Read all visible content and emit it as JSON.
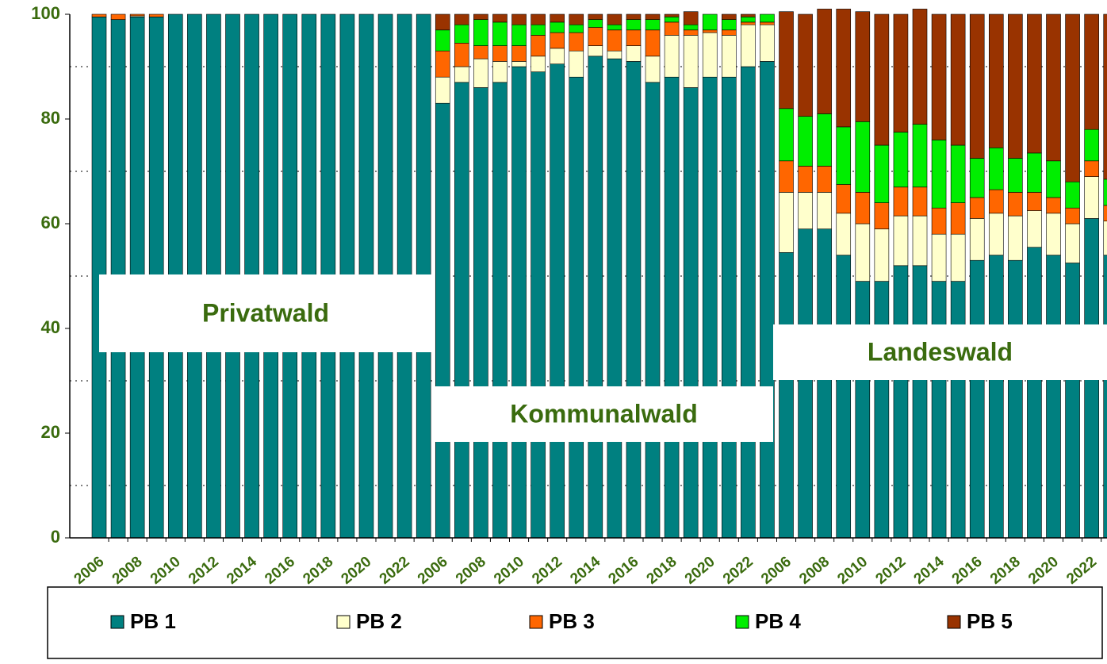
{
  "chart_data": {
    "type": "stacked_bar",
    "categories": [
      "2006",
      null,
      "2008",
      null,
      "2010",
      null,
      "2012",
      null,
      "2014",
      null,
      "2016",
      null,
      "2018",
      null,
      "2020",
      null,
      "2022",
      null,
      "2006",
      null,
      "2008",
      null,
      "2010",
      null,
      "2012",
      null,
      "2014",
      null,
      "2016",
      null,
      "2018",
      null,
      "2020",
      null,
      "2022",
      null,
      "2006",
      null,
      "2008",
      null,
      "2010",
      null,
      "2012",
      null,
      "2014",
      null,
      "2016",
      null,
      "2018",
      null,
      "2020",
      null,
      "2022",
      null
    ],
    "series": [
      {
        "name": "PB 1",
        "color": "#008080",
        "values": [
          99.5,
          99,
          99.5,
          99.5,
          100,
          100,
          100,
          100,
          100,
          100,
          100,
          100,
          100,
          100,
          100,
          100,
          100,
          100,
          83,
          87,
          86,
          87,
          90,
          89,
          90.5,
          88,
          92,
          91.5,
          91,
          87,
          88,
          86,
          88,
          88,
          90,
          91,
          54.5,
          59,
          59,
          54,
          49,
          49,
          52,
          52,
          49,
          49,
          53,
          54,
          53,
          55.5,
          54,
          52.5,
          61,
          54
        ]
      },
      {
        "name": "PB 2",
        "color": "#ffffcc",
        "values": [
          0,
          0,
          0.2,
          0,
          0,
          0,
          0,
          0,
          0,
          0,
          0,
          0,
          0,
          0,
          0,
          0,
          0,
          0,
          5,
          3,
          5.5,
          4,
          1,
          3,
          3,
          5,
          2,
          1.5,
          3,
          5,
          8,
          10,
          8.5,
          8,
          8,
          7,
          11.5,
          7,
          7,
          8,
          11,
          10,
          9.5,
          9.5,
          9,
          9,
          8,
          8,
          8.5,
          7,
          8,
          7.5,
          8,
          6.5
        ]
      },
      {
        "name": "PB 3",
        "color": "#ff6600",
        "values": [
          0.5,
          1,
          0.3,
          0.5,
          0,
          0,
          0,
          0,
          0,
          0,
          0,
          0,
          0,
          0,
          0,
          0,
          0,
          0,
          5,
          4.5,
          2.5,
          3,
          3,
          4,
          3,
          3.5,
          3.5,
          4,
          3,
          5,
          2.5,
          1,
          0.5,
          1,
          0.5,
          0.5,
          6,
          5,
          5,
          5.5,
          6,
          5,
          5.5,
          5.5,
          5,
          6,
          4,
          4.5,
          4.5,
          3.5,
          3,
          3,
          3,
          3
        ]
      },
      {
        "name": "PB 4",
        "color": "#00ee00",
        "values": [
          0,
          0,
          0,
          0,
          0,
          0,
          0,
          0,
          0,
          0,
          0,
          0,
          0,
          0,
          0,
          0,
          0,
          0,
          4,
          3.5,
          5,
          4.5,
          4,
          2,
          2,
          1.5,
          1.5,
          1,
          2,
          2,
          1,
          1,
          3,
          2,
          1,
          1.5,
          10,
          9.5,
          10,
          11,
          13.5,
          11,
          10.5,
          12,
          13,
          11,
          7.5,
          8,
          6.5,
          7.5,
          7,
          5,
          6,
          5
        ]
      },
      {
        "name": "PB 5",
        "color": "#993300",
        "values": [
          0,
          0,
          0,
          0,
          0,
          0,
          0,
          0,
          0,
          0,
          0,
          0,
          0,
          0,
          0,
          0,
          0,
          0,
          3,
          2,
          1,
          1.5,
          2,
          2,
          1.5,
          2,
          1,
          2,
          1,
          1,
          0.5,
          2.5,
          0,
          1,
          0.5,
          0,
          18.5,
          19.5,
          20,
          22.5,
          21,
          25,
          22.5,
          22,
          24,
          25,
          27.5,
          25.5,
          27.5,
          26.5,
          28,
          32,
          22,
          31.5
        ]
      }
    ],
    "annotations": [
      "Privatwald",
      "Kommunalwald",
      "Landeswald"
    ],
    "ylim": [
      0,
      100
    ],
    "yticks": [
      0,
      20,
      40,
      60,
      80,
      100
    ],
    "minor_grid_yticks": [
      10,
      30,
      50,
      70,
      90
    ],
    "legend": "bottom"
  }
}
